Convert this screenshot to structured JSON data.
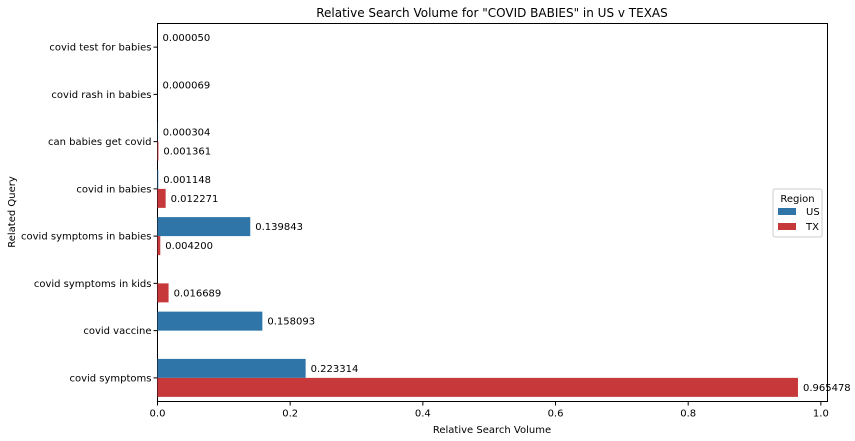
{
  "chart_data": {
    "type": "bar",
    "orientation": "horizontal",
    "title": "Relative Search Volume for \"COVID BABIES\" in US v TEXAS",
    "xlabel": "Relative Search Volume",
    "ylabel": "Related Query",
    "xlim": [
      0,
      1.01
    ],
    "xticks": [
      "0.0",
      "0.2",
      "0.4",
      "0.6",
      "0.8",
      "1.0"
    ],
    "xtick_values": [
      0,
      0.2,
      0.4,
      0.6,
      0.8,
      1.0
    ],
    "grid": false,
    "categories": [
      "covid test for babies",
      "covid rash in babies",
      "can babies get covid",
      "covid in babies",
      "covid symptoms in babies",
      "covid symptoms in kids",
      "covid vaccine",
      "covid symptoms"
    ],
    "series": [
      {
        "name": "US",
        "color": "#2f75a8",
        "values": [
          5e-05,
          6.9e-05,
          0.000304,
          0.001148,
          0.139843,
          null,
          0.158093,
          0.223314
        ],
        "labels": [
          "0.000050",
          "0.000069",
          "0.000304",
          "0.001148",
          "0.139843",
          null,
          "0.158093",
          "0.223314"
        ]
      },
      {
        "name": "TX",
        "color": "#c6383a",
        "values": [
          null,
          null,
          0.001361,
          0.012271,
          0.0042,
          0.016689,
          null,
          0.965478
        ],
        "labels": [
          null,
          null,
          "0.001361",
          "0.012271",
          "0.004200",
          "0.016689",
          null,
          "0.965478"
        ]
      }
    ],
    "legend": {
      "title": "Region",
      "placement": "center-right"
    }
  }
}
